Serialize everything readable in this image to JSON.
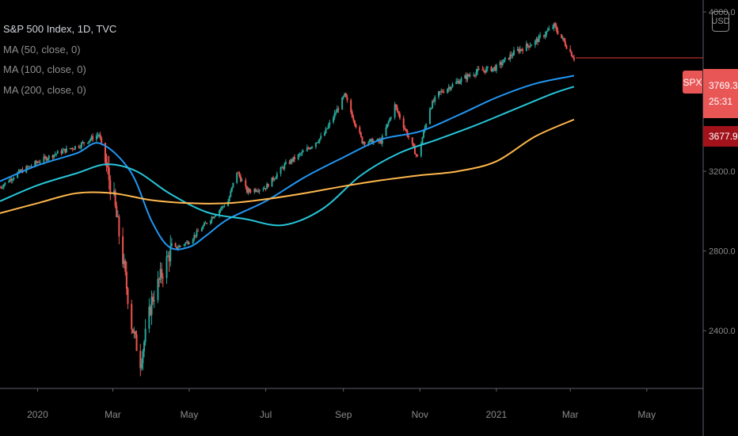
{
  "legend": {
    "title": "S&P 500 Index, 1D, TVC",
    "ma50": "MA (50, close, 0)",
    "ma100": "MA (100, close, 0)",
    "ma200": "MA (200, close, 0)"
  },
  "currency_button": "USD",
  "badges": {
    "symbol": "SPX",
    "last_price": "3769.3",
    "countdown": "25:31",
    "ma_value": "3677.9"
  },
  "colors": {
    "up": "#26a69a",
    "down": "#ef5350",
    "ma50": "#2196f3",
    "ma100": "#26c6da",
    "ma200": "#ffb74d",
    "price_line": "#e53935"
  },
  "chart_data": {
    "type": "candlestick",
    "title": "S&P 500 Index, 1D, TVC",
    "x_ticks": [
      "2020",
      "Mar",
      "May",
      "Jul",
      "Sep",
      "Nov",
      "2021",
      "Mar",
      "May"
    ],
    "x_tick_dates": [
      "2020-01-01",
      "2020-03-01",
      "2020-05-01",
      "2020-07-01",
      "2020-09-01",
      "2020-11-01",
      "2021-01-01",
      "2021-03-01",
      "2021-05-01"
    ],
    "y_ticks": [
      "2400.0",
      "2800.0",
      "3200.0",
      "4000.0"
    ],
    "ylim": [
      2110,
      4060
    ],
    "x_range": [
      "2019-12-02",
      "2021-06-15"
    ],
    "closes": {
      "dates": [
        "2019-12-02",
        "2019-12-16",
        "2020-01-02",
        "2020-01-16",
        "2020-02-03",
        "2020-02-19",
        "2020-03-02",
        "2020-03-09",
        "2020-03-16",
        "2020-03-23",
        "2020-04-01",
        "2020-04-16",
        "2020-05-01",
        "2020-05-16",
        "2020-06-01",
        "2020-06-08",
        "2020-06-16",
        "2020-07-01",
        "2020-07-16",
        "2020-08-01",
        "2020-08-16",
        "2020-09-02",
        "2020-09-16",
        "2020-10-01",
        "2020-10-12",
        "2020-10-30",
        "2020-11-09",
        "2020-11-16",
        "2020-12-01",
        "2020-12-16",
        "2021-01-01",
        "2021-01-16",
        "2021-02-01",
        "2021-02-16",
        "2021-03-01",
        "2021-03-04"
      ],
      "values": [
        3120,
        3190,
        3250,
        3290,
        3330,
        3386,
        3050,
        2760,
        2430,
        2240,
        2550,
        2800,
        2850,
        2950,
        3050,
        3200,
        3100,
        3120,
        3230,
        3300,
        3380,
        3580,
        3350,
        3350,
        3530,
        3270,
        3520,
        3590,
        3650,
        3700,
        3720,
        3800,
        3850,
        3930,
        3800,
        3769
      ]
    },
    "series": [
      {
        "name": "MA (50, close, 0)",
        "dates": [
          "2019-12-02",
          "2020-01-01",
          "2020-02-01",
          "2020-02-20",
          "2020-03-15",
          "2020-04-01",
          "2020-04-15",
          "2020-05-01",
          "2020-05-15",
          "2020-06-01",
          "2020-07-01",
          "2020-08-01",
          "2020-09-01",
          "2020-10-01",
          "2020-11-01",
          "2020-12-01",
          "2021-01-01",
          "2021-02-01",
          "2021-03-04"
        ],
        "values": [
          3150,
          3230,
          3290,
          3340,
          3200,
          2950,
          2820,
          2820,
          2880,
          2960,
          3050,
          3170,
          3270,
          3360,
          3400,
          3480,
          3570,
          3640,
          3680
        ]
      },
      {
        "name": "MA (100, close, 0)",
        "dates": [
          "2019-12-02",
          "2020-01-01",
          "2020-02-01",
          "2020-02-25",
          "2020-03-20",
          "2020-04-15",
          "2020-05-15",
          "2020-06-15",
          "2020-07-15",
          "2020-08-15",
          "2020-09-15",
          "2020-10-15",
          "2020-11-15",
          "2020-12-15",
          "2021-01-15",
          "2021-02-15",
          "2021-03-04"
        ],
        "values": [
          3050,
          3130,
          3190,
          3235,
          3200,
          3090,
          2995,
          2960,
          2930,
          3010,
          3180,
          3290,
          3360,
          3430,
          3510,
          3590,
          3625
        ]
      },
      {
        "name": "MA (200, close, 0)",
        "dates": [
          "2019-12-02",
          "2020-01-01",
          "2020-02-01",
          "2020-03-01",
          "2020-04-01",
          "2020-05-01",
          "2020-06-01",
          "2020-07-01",
          "2020-08-01",
          "2020-09-01",
          "2020-10-01",
          "2020-11-01",
          "2020-12-01",
          "2021-01-01",
          "2021-02-01",
          "2021-03-04"
        ],
        "values": [
          2990,
          3040,
          3090,
          3090,
          3055,
          3040,
          3040,
          3060,
          3090,
          3125,
          3155,
          3180,
          3200,
          3250,
          3375,
          3460
        ]
      }
    ],
    "price_line_value": 3769.3,
    "grid": false,
    "legend_position": "top-left"
  }
}
